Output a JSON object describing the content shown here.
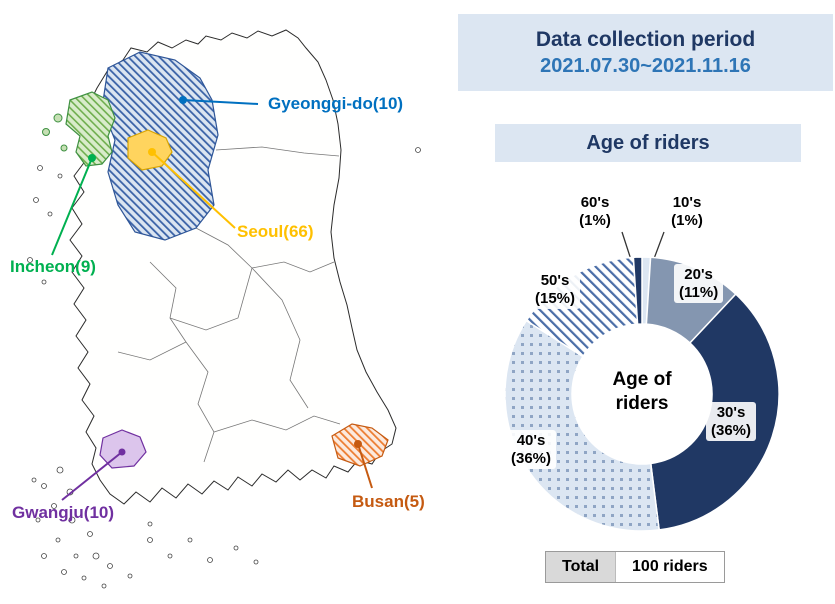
{
  "header": {
    "title": "Data collection period",
    "period": "2021.07.30~2021.11.16",
    "bg": "#dce6f2",
    "title_color": "#1f3864",
    "period_color": "#2e75b6"
  },
  "map": {
    "regions": [
      {
        "id": "gyeonggi",
        "label": "Gyeonggi-do(10)",
        "color": "#0070c0"
      },
      {
        "id": "seoul",
        "label": "Seoul(66)",
        "color": "#ffc000"
      },
      {
        "id": "incheon",
        "label": "Incheon(9)",
        "color": "#00b050"
      },
      {
        "id": "gwangju",
        "label": "Gwangju(10)",
        "color": "#7030a0"
      },
      {
        "id": "busan",
        "label": "Busan(5)",
        "color": "#c55a11"
      }
    ]
  },
  "age_panel": {
    "title": "Age of riders",
    "bg": "#dce6f2"
  },
  "chart_data": {
    "type": "pie",
    "donut": true,
    "title": "Age of riders",
    "center_lines": [
      "Age of",
      "riders"
    ],
    "legend_position": "none",
    "units": "%",
    "slices": [
      {
        "label": "10's",
        "pct_label": "(1%)",
        "value": 1,
        "color": "#dce6f2",
        "pattern": "solid"
      },
      {
        "label": "20's",
        "pct_label": "(11%)",
        "value": 11,
        "color": "#8496b0",
        "pattern": "solid"
      },
      {
        "label": "30's",
        "pct_label": "(36%)",
        "value": 36,
        "color": "#203864",
        "pattern": "solid"
      },
      {
        "label": "40's",
        "pct_label": "(36%)",
        "value": 36,
        "color": "#dce6f2",
        "pattern": "dots"
      },
      {
        "label": "50's",
        "pct_label": "(15%)",
        "value": 15,
        "color": "#4a6da7",
        "pattern": "hatch"
      },
      {
        "label": "60's",
        "pct_label": "(1%)",
        "value": 1,
        "color": "#203864",
        "pattern": "solid"
      }
    ],
    "total": {
      "label": "Total",
      "value": "100 riders"
    }
  }
}
